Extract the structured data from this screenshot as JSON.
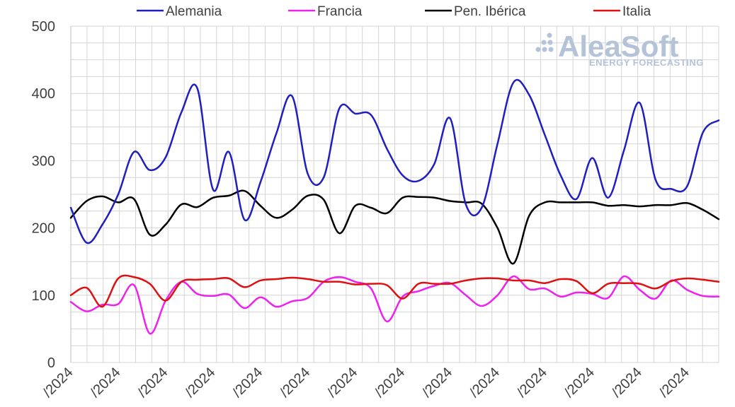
{
  "watermark": {
    "brand": "AleaSoft",
    "tagline": "ENERGY FORECASTING",
    "color": "#b4c3d8"
  },
  "chart_data": {
    "type": "line",
    "title": "",
    "xlabel": "",
    "ylabel": "",
    "ylim": [
      0,
      500
    ],
    "yticks": [
      0,
      100,
      200,
      300,
      400,
      500
    ],
    "grid": true,
    "legend_position": "top",
    "x": [
      0,
      1,
      2,
      3,
      4,
      5,
      6,
      7,
      8,
      9,
      10,
      11,
      12,
      13,
      14,
      15,
      16,
      17,
      18,
      19,
      20,
      21,
      22,
      23,
      24,
      25,
      26,
      27,
      28,
      29,
      30,
      31,
      32,
      33,
      34,
      35,
      36,
      37,
      38,
      39,
      40,
      41
    ],
    "x_tick_labels": [
      {
        "x": 0,
        "label": "/2024"
      },
      {
        "x": 3,
        "label": "/2024"
      },
      {
        "x": 6,
        "label": "/2024"
      },
      {
        "x": 9,
        "label": "/2024"
      },
      {
        "x": 12,
        "label": "/2024"
      },
      {
        "x": 15,
        "label": "/2024"
      },
      {
        "x": 18,
        "label": "/2024"
      },
      {
        "x": 21,
        "label": "/2024"
      },
      {
        "x": 24,
        "label": "/2024"
      },
      {
        "x": 27,
        "label": "/2024"
      },
      {
        "x": 30,
        "label": "/2024"
      },
      {
        "x": 33,
        "label": "/2024"
      },
      {
        "x": 36,
        "label": "/2024"
      },
      {
        "x": 39,
        "label": "/2024"
      }
    ],
    "series": [
      {
        "name": "Alemania",
        "color": "#1f1fbf",
        "values": [
          230,
          178,
          205,
          250,
          313,
          286,
          305,
          372,
          408,
          257,
          313,
          212,
          268,
          340,
          396,
          280,
          275,
          378,
          370,
          368,
          318,
          278,
          270,
          295,
          363,
          235,
          230,
          325,
          416,
          398,
          338,
          278,
          243,
          304,
          245,
          315,
          386,
          272,
          258,
          262,
          342,
          360
        ]
      },
      {
        "name": "Francia",
        "color": "#ee22ee",
        "values": [
          90,
          76,
          86,
          87,
          115,
          43,
          92,
          120,
          102,
          99,
          101,
          81,
          97,
          83,
          91,
          96,
          120,
          127,
          120,
          110,
          61,
          98,
          106,
          114,
          118,
          100,
          84,
          100,
          128,
          109,
          110,
          98,
          104,
          102,
          96,
          128,
          108,
          95,
          122,
          108,
          99,
          98
        ]
      },
      {
        "name": "Pen. Ibérica",
        "color": "#000000",
        "values": [
          215,
          240,
          247,
          238,
          243,
          190,
          205,
          235,
          231,
          245,
          248,
          255,
          233,
          215,
          227,
          248,
          242,
          192,
          233,
          230,
          222,
          245,
          246,
          245,
          240,
          238,
          236,
          200,
          147,
          218,
          238,
          238,
          238,
          238,
          233,
          234,
          232,
          234,
          234,
          237,
          227,
          213
        ]
      },
      {
        "name": "Italia",
        "color": "#dd1111",
        "values": [
          100,
          111,
          83,
          125,
          127,
          117,
          92,
          120,
          123,
          124,
          125,
          112,
          122,
          124,
          126,
          124,
          120,
          120,
          116,
          117,
          115,
          95,
          117,
          117,
          117,
          122,
          125,
          125,
          122,
          122,
          118,
          124,
          121,
          103,
          117,
          118,
          117,
          110,
          121,
          125,
          123,
          120
        ]
      }
    ]
  }
}
